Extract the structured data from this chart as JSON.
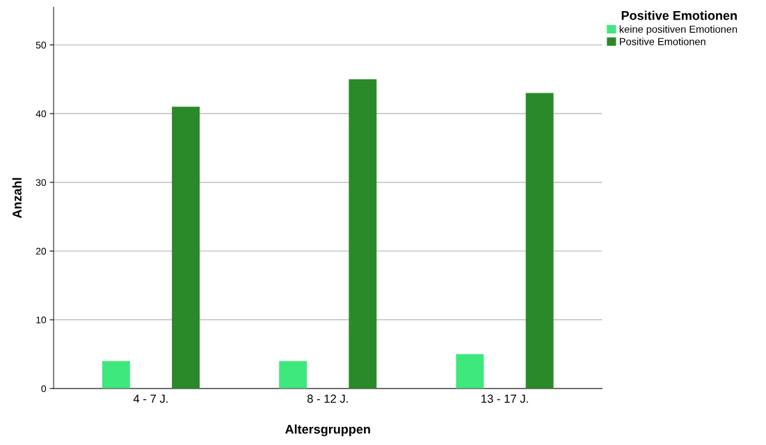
{
  "chart_data": {
    "type": "bar",
    "xlabel": "Altersgruppen",
    "ylabel": "Anzahl",
    "legend_title": "Positive Emotionen",
    "categories": [
      "4 - 7 J.",
      "8 - 12 J.",
      "13 - 17 J."
    ],
    "series": [
      {
        "name": "keine positiven Emotionen",
        "color": "#3ee87c",
        "values": [
          4,
          4,
          5
        ]
      },
      {
        "name": "Positive Emotionen",
        "color": "#2a8a2a",
        "values": [
          41,
          45,
          43
        ]
      }
    ],
    "ylim": [
      0,
      55.5
    ],
    "yticks": [
      0,
      10,
      20,
      30,
      40,
      50
    ],
    "grid": "y",
    "legend": "top right"
  }
}
